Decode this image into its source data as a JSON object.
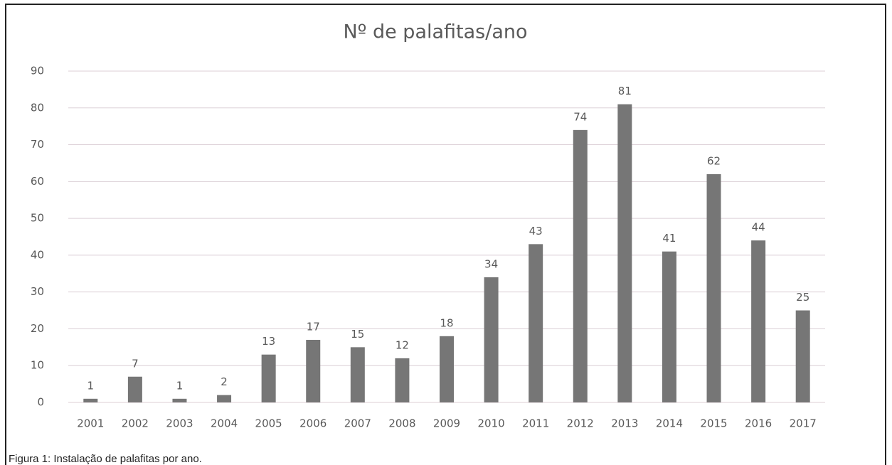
{
  "chart_data": {
    "type": "bar",
    "title": "Nº de palafitas/ano",
    "categories": [
      "2001",
      "2002",
      "2003",
      "2004",
      "2005",
      "2006",
      "2007",
      "2008",
      "2009",
      "2010",
      "2011",
      "2012",
      "2013",
      "2014",
      "2015",
      "2016",
      "2017"
    ],
    "values": [
      1,
      7,
      1,
      2,
      13,
      17,
      15,
      12,
      18,
      34,
      43,
      74,
      81,
      41,
      62,
      44,
      25
    ],
    "color": "#767676",
    "ylim": [
      0,
      90
    ],
    "yticks": [
      0,
      10,
      20,
      30,
      40,
      50,
      60,
      70,
      80,
      90
    ],
    "grid": true
  },
  "caption": "Figura 1: Instalação de palafitas por ano."
}
